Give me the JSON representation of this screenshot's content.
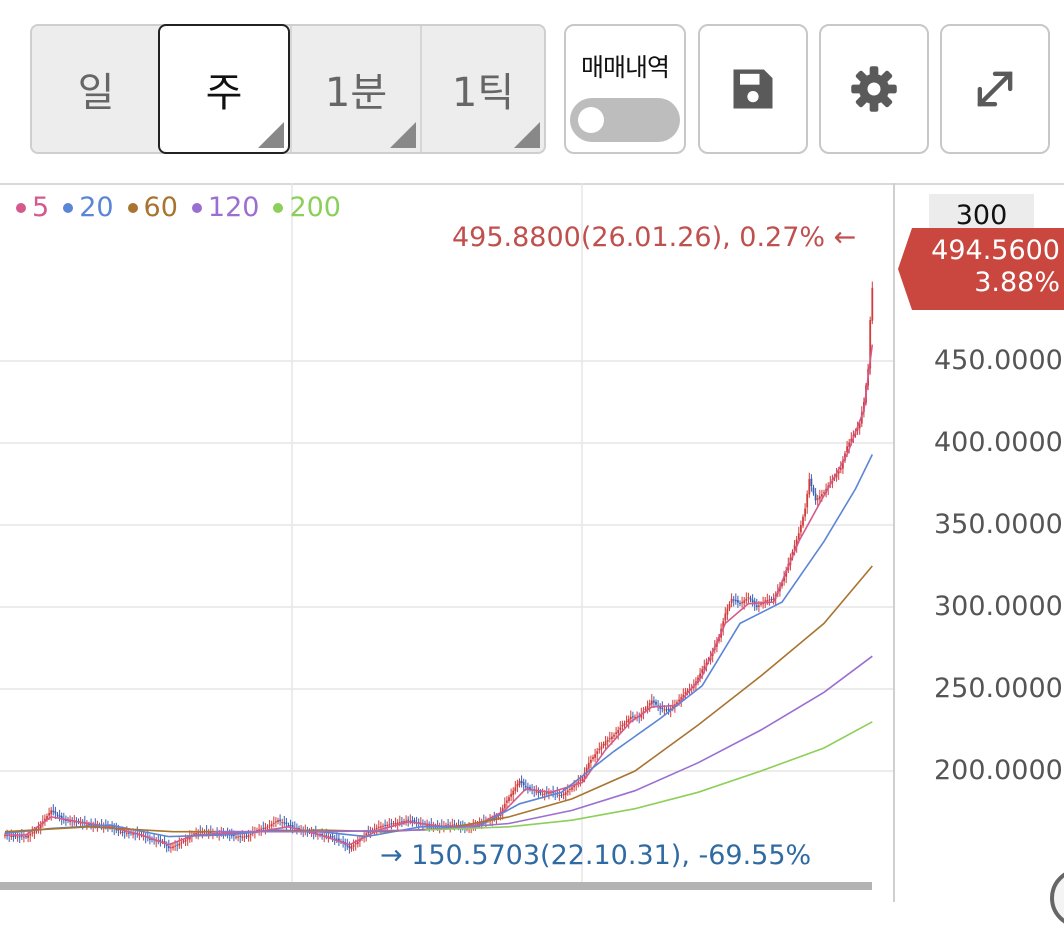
{
  "toolbar": {
    "period_buttons": [
      {
        "label": "일",
        "active": false,
        "has_corner": false
      },
      {
        "label": "주",
        "active": true,
        "has_corner": true
      },
      {
        "label": "1분",
        "active": false,
        "has_corner": true
      },
      {
        "label": "1틱",
        "active": false,
        "has_corner": true
      }
    ],
    "trade_history_label": "매매내역",
    "trade_history_on": false,
    "icons": {
      "save": "save-icon",
      "settings": "gear-icon",
      "fullscreen": "expand-icon"
    }
  },
  "legend": [
    {
      "label": "5",
      "color": "#d45a8c"
    },
    {
      "label": "20",
      "color": "#5b85d6"
    },
    {
      "label": "60",
      "color": "#a8742f"
    },
    {
      "label": "120",
      "color": "#9b6fd1"
    },
    {
      "label": "200",
      "color": "#8ccf5a"
    }
  ],
  "annotations": {
    "high": "495.8800(26.01.26), 0.27%  ←",
    "low": "→ 150.5703(22.10.31), -69.55%"
  },
  "price_axis": {
    "top_label": "300",
    "current_price": "494.5600",
    "current_change": "3.88%",
    "current_color": "#c9473f",
    "ticks": [
      "450.0000",
      "400.0000",
      "350.0000",
      "300.0000",
      "250.0000",
      "200.0000"
    ]
  },
  "chart_data": {
    "type": "line",
    "title": "",
    "ylim": [
      140,
      510
    ],
    "y_ticks": [
      200,
      250,
      300,
      350,
      400,
      450
    ],
    "grid": true,
    "candle_up_color": "#d13b3b",
    "candle_down_color": "#3a5fb5",
    "price": [
      [
        0,
        161
      ],
      [
        5,
        160
      ],
      [
        10,
        160
      ],
      [
        15,
        164
      ],
      [
        22,
        176
      ],
      [
        28,
        170
      ],
      [
        35,
        169
      ],
      [
        40,
        167
      ],
      [
        45,
        167
      ],
      [
        50,
        166
      ],
      [
        55,
        163
      ],
      [
        60,
        162
      ],
      [
        65,
        161
      ],
      [
        70,
        158
      ],
      [
        75,
        157
      ],
      [
        78,
        153
      ],
      [
        82,
        155
      ],
      [
        86,
        158
      ],
      [
        90,
        162
      ],
      [
        95,
        163
      ],
      [
        100,
        162
      ],
      [
        105,
        162
      ],
      [
        110,
        160
      ],
      [
        115,
        160
      ],
      [
        120,
        164
      ],
      [
        125,
        166
      ],
      [
        130,
        170
      ],
      [
        135,
        167
      ],
      [
        140,
        164
      ],
      [
        145,
        163
      ],
      [
        150,
        161
      ],
      [
        155,
        160
      ],
      [
        160,
        157
      ],
      [
        164,
        153
      ],
      [
        168,
        157
      ],
      [
        172,
        162
      ],
      [
        178,
        166
      ],
      [
        185,
        168
      ],
      [
        192,
        170
      ],
      [
        198,
        168
      ],
      [
        205,
        166
      ],
      [
        210,
        167
      ],
      [
        215,
        167
      ],
      [
        220,
        165
      ],
      [
        225,
        168
      ],
      [
        230,
        170
      ],
      [
        235,
        172
      ],
      [
        238,
        180
      ],
      [
        242,
        188
      ],
      [
        245,
        194
      ],
      [
        248,
        190
      ],
      [
        252,
        188
      ],
      [
        256,
        186
      ],
      [
        260,
        187
      ],
      [
        265,
        185
      ],
      [
        270,
        190
      ],
      [
        275,
        196
      ],
      [
        278,
        205
      ],
      [
        282,
        212
      ],
      [
        286,
        218
      ],
      [
        290,
        222
      ],
      [
        294,
        228
      ],
      [
        298,
        233
      ],
      [
        302,
        233
      ],
      [
        305,
        238
      ],
      [
        308,
        243
      ],
      [
        312,
        238
      ],
      [
        316,
        237
      ],
      [
        320,
        242
      ],
      [
        324,
        248
      ],
      [
        328,
        252
      ],
      [
        332,
        262
      ],
      [
        336,
        270
      ],
      [
        340,
        282
      ],
      [
        343,
        296
      ],
      [
        346,
        305
      ],
      [
        350,
        302
      ],
      [
        354,
        306
      ],
      [
        358,
        300
      ],
      [
        362,
        304
      ],
      [
        366,
        305
      ],
      [
        370,
        315
      ],
      [
        374,
        330
      ],
      [
        378,
        345
      ],
      [
        381,
        360
      ],
      [
        383,
        378
      ],
      [
        386,
        365
      ],
      [
        390,
        370
      ],
      [
        394,
        378
      ],
      [
        398,
        385
      ],
      [
        401,
        398
      ],
      [
        404,
        405
      ],
      [
        407,
        412
      ],
      [
        409,
        425
      ],
      [
        411,
        445
      ],
      [
        412,
        475
      ],
      [
        413,
        494.56
      ]
    ],
    "series": [
      {
        "name": "5",
        "values": [
          [
            0,
            161
          ],
          [
            10,
            161
          ],
          [
            22,
            172
          ],
          [
            35,
            169
          ],
          [
            50,
            166
          ],
          [
            65,
            161
          ],
          [
            78,
            155
          ],
          [
            90,
            161
          ],
          [
            105,
            162
          ],
          [
            120,
            163
          ],
          [
            135,
            166
          ],
          [
            150,
            161
          ],
          [
            164,
            155
          ],
          [
            178,
            164
          ],
          [
            192,
            169
          ],
          [
            210,
            166
          ],
          [
            225,
            167
          ],
          [
            238,
            176
          ],
          [
            248,
            189
          ],
          [
            260,
            187
          ],
          [
            275,
            193
          ],
          [
            286,
            213
          ],
          [
            298,
            230
          ],
          [
            308,
            239
          ],
          [
            320,
            240
          ],
          [
            332,
            258
          ],
          [
            343,
            290
          ],
          [
            354,
            302
          ],
          [
            366,
            303
          ],
          [
            378,
            340
          ],
          [
            390,
            368
          ],
          [
            401,
            393
          ],
          [
            409,
            420
          ],
          [
            413,
            460
          ]
        ]
      },
      {
        "name": "20",
        "values": [
          [
            0,
            162
          ],
          [
            22,
            165
          ],
          [
            50,
            167
          ],
          [
            78,
            160
          ],
          [
            105,
            161
          ],
          [
            130,
            164
          ],
          [
            150,
            163
          ],
          [
            172,
            160
          ],
          [
            198,
            166
          ],
          [
            225,
            166
          ],
          [
            245,
            180
          ],
          [
            265,
            187
          ],
          [
            290,
            212
          ],
          [
            312,
            232
          ],
          [
            332,
            252
          ],
          [
            350,
            290
          ],
          [
            370,
            303
          ],
          [
            390,
            340
          ],
          [
            405,
            372
          ],
          [
            413,
            393
          ]
        ]
      },
      {
        "name": "60",
        "values": [
          [
            0,
            163
          ],
          [
            40,
            166
          ],
          [
            80,
            163
          ],
          [
            120,
            163
          ],
          [
            150,
            164
          ],
          [
            180,
            163
          ],
          [
            210,
            165
          ],
          [
            240,
            172
          ],
          [
            270,
            183
          ],
          [
            300,
            200
          ],
          [
            330,
            228
          ],
          [
            360,
            258
          ],
          [
            390,
            290
          ],
          [
            413,
            325
          ]
        ]
      },
      {
        "name": "120",
        "values": [
          [
            100,
            163
          ],
          [
            150,
            163
          ],
          [
            200,
            164
          ],
          [
            240,
            168
          ],
          [
            270,
            176
          ],
          [
            300,
            188
          ],
          [
            330,
            205
          ],
          [
            360,
            225
          ],
          [
            390,
            248
          ],
          [
            413,
            270
          ]
        ]
      },
      {
        "name": "200",
        "values": [
          [
            200,
            164
          ],
          [
            240,
            166
          ],
          [
            270,
            170
          ],
          [
            300,
            177
          ],
          [
            330,
            187
          ],
          [
            360,
            200
          ],
          [
            390,
            214
          ],
          [
            413,
            230
          ]
        ]
      }
    ]
  }
}
